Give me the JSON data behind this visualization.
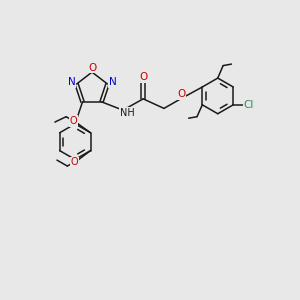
{
  "background_color": "#e8e8e8",
  "bond_color": "#1a1a1a",
  "figsize": [
    3.0,
    3.0
  ],
  "dpi": 100,
  "red": "#cc0000",
  "blue": "#0000cc",
  "green": "#2e8b57",
  "black": "#1a1a1a",
  "xlim": [
    0,
    10
  ],
  "ylim": [
    0,
    10
  ]
}
